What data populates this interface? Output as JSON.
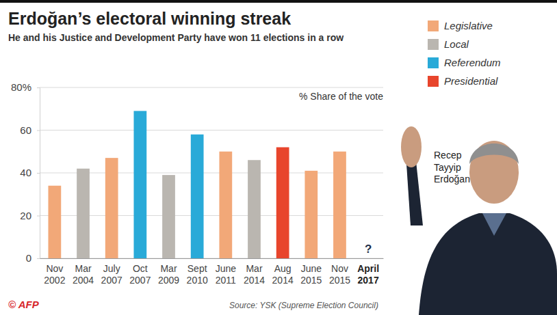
{
  "chart_data": {
    "type": "bar",
    "title": "Erdoğan’s electoral winning streak",
    "subtitle": "He and his Justice and Development Party have won 11 elections in a row",
    "categories": [
      "Nov 2002",
      "Mar 2004",
      "July 2007",
      "Oct 2007",
      "Mar 2009",
      "Sept 2010",
      "June 2011",
      "Mar 2014",
      "Aug 2014",
      "June 2015",
      "Nov 2015",
      "April 2017"
    ],
    "series": [
      {
        "name": "Legislative",
        "color": "#f2a878",
        "values": [
          34,
          null,
          47,
          null,
          null,
          null,
          50,
          null,
          null,
          41,
          50,
          null
        ]
      },
      {
        "name": "Local",
        "color": "#bab6b0",
        "values": [
          null,
          42,
          null,
          null,
          39,
          null,
          null,
          46,
          null,
          null,
          null,
          null
        ]
      },
      {
        "name": "Referendum",
        "color": "#29aad8",
        "values": [
          null,
          null,
          null,
          69,
          null,
          58,
          null,
          null,
          null,
          null,
          null,
          null
        ]
      },
      {
        "name": "Presidential",
        "color": "#e8452c",
        "values": [
          null,
          null,
          null,
          null,
          null,
          null,
          null,
          null,
          52,
          null,
          null,
          null
        ]
      }
    ],
    "stacked": true,
    "ylim": [
      0,
      80
    ],
    "yticks": [
      0,
      20,
      40,
      60,
      {
        "value": 80,
        "label": "80%"
      }
    ],
    "grid": true,
    "legend": "top-right",
    "annotations": [
      {
        "text": "% Share of the vote"
      },
      {
        "text": "?",
        "category": "April 2017"
      }
    ],
    "photo_caption": "Recep Tayyip Erdoğan",
    "credit": "© AFP",
    "source": "Source: YSK (Supreme Election Council)"
  }
}
